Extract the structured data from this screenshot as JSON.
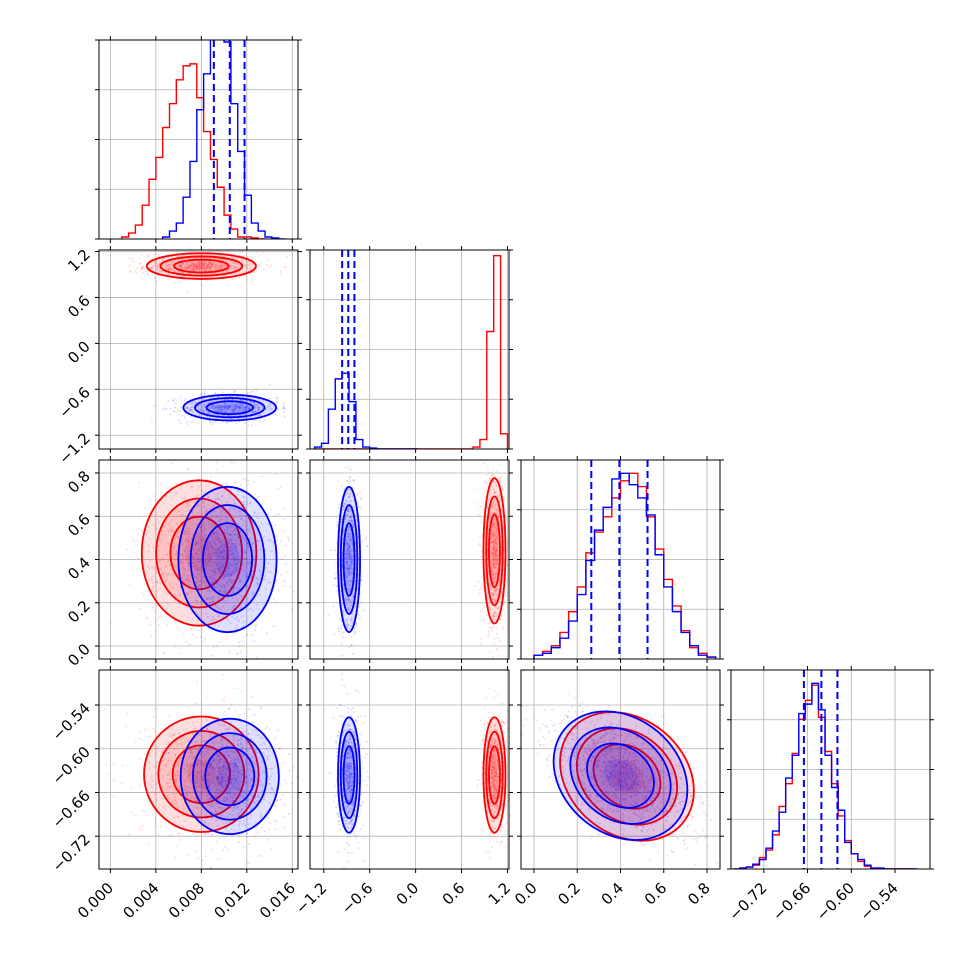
{
  "chart_data": {
    "type": "corner",
    "colors": {
      "red": "#ff0000",
      "blue": "#0000ff",
      "grid": "#b0b0b0"
    },
    "variables": [
      {
        "range": [
          -0.001,
          0.0165
        ],
        "ticks": [
          0.0,
          0.004,
          0.008,
          0.012,
          0.016
        ],
        "tick_labels": [
          "0.000",
          "0.004",
          "0.008",
          "0.012",
          "0.016"
        ]
      },
      {
        "range": [
          -1.38,
          1.22
        ],
        "ticks": [
          -1.2,
          -0.6,
          0.0,
          0.6,
          1.2
        ],
        "tick_labels": [
          "−1.2",
          "−0.6",
          "0.0",
          "0.6",
          "1.2"
        ]
      },
      {
        "range": [
          -0.06,
          0.86
        ],
        "ticks": [
          0.0,
          0.2,
          0.4,
          0.6,
          0.8
        ],
        "tick_labels": [
          "0.0",
          "0.2",
          "0.4",
          "0.6",
          "0.8"
        ]
      },
      {
        "range": [
          -0.765,
          -0.492
        ],
        "ticks": [
          -0.72,
          -0.66,
          -0.6,
          -0.54
        ],
        "tick_labels": [
          "−0.72",
          "−0.66",
          "−0.60",
          "−0.54"
        ]
      }
    ],
    "diag_ymax": [
      1.0,
      1.05,
      1.05,
      1.05
    ],
    "diag": [
      {
        "red": {
          "bins": [
            0.001,
            0.0016,
            0.0022,
            0.0028,
            0.0034,
            0.004,
            0.0046,
            0.0052,
            0.0058,
            0.0064,
            0.007,
            0.0076,
            0.0082,
            0.0088,
            0.0094,
            0.01,
            0.0106,
            0.0112,
            0.0118,
            0.0124,
            0.013,
            0.0136
          ],
          "counts": [
            0.01,
            0.03,
            0.07,
            0.17,
            0.3,
            0.41,
            0.56,
            0.68,
            0.8,
            0.87,
            0.88,
            0.71,
            0.54,
            0.4,
            0.26,
            0.12,
            0.05,
            0.01,
            0.01,
            0.005,
            0.0
          ]
        },
        "blue": {
          "bins": [
            0.0046,
            0.0052,
            0.0058,
            0.0064,
            0.007,
            0.0076,
            0.0082,
            0.0088,
            0.0094,
            0.01,
            0.0106,
            0.0112,
            0.0118,
            0.0124,
            0.013,
            0.0136,
            0.0142,
            0.0148,
            0.0154
          ],
          "counts": [
            0.01,
            0.04,
            0.08,
            0.21,
            0.39,
            0.65,
            0.83,
            1.03,
            1.05,
            0.99,
            0.68,
            0.44,
            0.22,
            0.08,
            0.04,
            0.01,
            0.005,
            0.0
          ]
        },
        "quantiles": [
          0.0091,
          0.0105,
          0.0118
        ]
      },
      {
        "red": {
          "bins": [
            -1.32,
            -1.23,
            -1.14,
            -1.05,
            -0.96,
            -0.87,
            -0.78,
            -0.69,
            -0.6,
            -0.51,
            -0.42,
            -0.33,
            -0.24,
            -0.15,
            -0.06,
            0.03,
            0.12,
            0.21,
            0.3,
            0.39,
            0.48,
            0.57,
            0.66,
            0.75,
            0.84,
            0.93,
            1.02,
            1.11,
            1.2
          ],
          "counts": [
            0,
            0,
            0,
            0,
            0,
            0,
            0,
            0,
            0,
            0,
            0,
            0,
            0,
            0,
            0,
            0,
            0,
            0,
            0,
            0,
            0,
            0,
            0,
            0.01,
            0.05,
            0.62,
            1.02,
            0.08
          ]
        },
        "blue": {
          "bins": [
            -1.32,
            -1.23,
            -1.14,
            -1.05,
            -0.96,
            -0.87,
            -0.78,
            -0.69,
            -0.6,
            -0.51,
            -0.42,
            -0.33,
            -0.24,
            -0.15,
            -0.06,
            0.03
          ],
          "counts": [
            0.01,
            0.03,
            0.21,
            0.37,
            0.4,
            0.25,
            0.05,
            0.01,
            0.005,
            0,
            0,
            0,
            0,
            0,
            0
          ]
        },
        "quantiles": [
          -0.96,
          -0.88,
          -0.8
        ]
      },
      {
        "red": {
          "bins": [
            0.0,
            0.04,
            0.08,
            0.12,
            0.16,
            0.2,
            0.24,
            0.28,
            0.32,
            0.36,
            0.4,
            0.44,
            0.48,
            0.52,
            0.56,
            0.6,
            0.64,
            0.68,
            0.72,
            0.76,
            0.8,
            0.84
          ],
          "counts": [
            0.02,
            0.04,
            0.07,
            0.14,
            0.25,
            0.38,
            0.56,
            0.67,
            0.75,
            0.85,
            0.94,
            0.98,
            0.91,
            0.75,
            0.58,
            0.42,
            0.28,
            0.15,
            0.06,
            0.03,
            0.01
          ]
        },
        "blue": {
          "bins": [
            0.0,
            0.04,
            0.08,
            0.12,
            0.16,
            0.2,
            0.24,
            0.28,
            0.32,
            0.36,
            0.4,
            0.44,
            0.48,
            0.52,
            0.56,
            0.6,
            0.64,
            0.68,
            0.72,
            0.76,
            0.8,
            0.84
          ],
          "counts": [
            0.02,
            0.03,
            0.06,
            0.11,
            0.2,
            0.34,
            0.52,
            0.68,
            0.8,
            0.95,
            0.98,
            0.92,
            0.85,
            0.76,
            0.55,
            0.38,
            0.25,
            0.14,
            0.07,
            0.02,
            0.01
          ]
        },
        "quantiles": [
          0.265,
          0.395,
          0.525
        ]
      },
      {
        "red": {
          "bins": [
            -0.762,
            -0.753,
            -0.744,
            -0.735,
            -0.726,
            -0.717,
            -0.708,
            -0.699,
            -0.69,
            -0.681,
            -0.672,
            -0.663,
            -0.654,
            -0.645,
            -0.636,
            -0.627,
            -0.618,
            -0.609,
            -0.6,
            -0.591,
            -0.582,
            -0.573,
            -0.564,
            -0.555,
            -0.546,
            -0.537,
            -0.528,
            -0.519,
            -0.51
          ],
          "counts": [
            0,
            0.005,
            0.01,
            0.02,
            0.06,
            0.1,
            0.18,
            0.33,
            0.45,
            0.61,
            0.79,
            0.89,
            0.97,
            0.8,
            0.62,
            0.45,
            0.28,
            0.15,
            0.08,
            0.04,
            0.015,
            0.005,
            0,
            0,
            0,
            0,
            0,
            0
          ]
        },
        "blue": {
          "bins": [
            -0.762,
            -0.753,
            -0.744,
            -0.735,
            -0.726,
            -0.717,
            -0.708,
            -0.699,
            -0.69,
            -0.681,
            -0.672,
            -0.663,
            -0.654,
            -0.645,
            -0.636,
            -0.627,
            -0.618,
            -0.609,
            -0.6,
            -0.591,
            -0.582,
            -0.573,
            -0.564,
            -0.555,
            -0.546,
            -0.537,
            -0.528,
            -0.519,
            -0.51
          ],
          "counts": [
            0,
            0.005,
            0.01,
            0.025,
            0.05,
            0.11,
            0.2,
            0.3,
            0.48,
            0.6,
            0.82,
            0.87,
            0.98,
            0.84,
            0.6,
            0.43,
            0.31,
            0.14,
            0.08,
            0.05,
            0.02,
            0.005,
            0.005,
            0,
            0,
            0,
            0,
            0
          ]
        },
        "quantiles": [
          -0.665,
          -0.641,
          -0.619
        ]
      }
    ],
    "pairs": [
      {
        "row": 1,
        "col": 0,
        "red": {
          "center": [
            0.008,
            1.01
          ],
          "sigma": [
            0.002,
            0.07
          ],
          "rho": 0.0
        },
        "blue": {
          "center": [
            0.0105,
            -0.84
          ],
          "sigma": [
            0.0017,
            0.07
          ],
          "rho": 0.0
        }
      },
      {
        "row": 2,
        "col": 0,
        "red": {
          "center": [
            0.0078,
            0.43
          ],
          "sigma": [
            0.0021,
            0.14
          ],
          "rho": 0.0
        },
        "blue": {
          "center": [
            0.0103,
            0.4
          ],
          "sigma": [
            0.0018,
            0.14
          ],
          "rho": 0.0
        }
      },
      {
        "row": 2,
        "col": 1,
        "red": {
          "center": [
            1.03,
            0.44
          ],
          "sigma": [
            0.06,
            0.14
          ],
          "rho": 0.0
        },
        "blue": {
          "center": [
            -0.87,
            0.4
          ],
          "sigma": [
            0.06,
            0.14
          ],
          "rho": 0.0
        }
      },
      {
        "row": 3,
        "col": 0,
        "red": {
          "center": [
            0.008,
            -0.635
          ],
          "sigma": [
            0.0021,
            0.033
          ],
          "rho": 0.0
        },
        "blue": {
          "center": [
            0.0105,
            -0.638
          ],
          "sigma": [
            0.0018,
            0.033
          ],
          "rho": 0.0
        }
      },
      {
        "row": 3,
        "col": 1,
        "red": {
          "center": [
            1.03,
            -0.636
          ],
          "sigma": [
            0.06,
            0.033
          ],
          "rho": 0.0
        },
        "blue": {
          "center": [
            -0.87,
            -0.636
          ],
          "sigma": [
            0.06,
            0.033
          ],
          "rho": 0.0
        }
      },
      {
        "row": 3,
        "col": 2,
        "red": {
          "center": [
            0.43,
            -0.638
          ],
          "sigma": [
            0.14,
            0.033
          ],
          "rho": -0.6
        },
        "blue": {
          "center": [
            0.4,
            -0.637
          ],
          "sigma": [
            0.14,
            0.033
          ],
          "rho": -0.6
        }
      }
    ],
    "contour_sigmas": [
      0.6,
      1.2,
      1.8,
      2.4
    ],
    "grid": true
  }
}
